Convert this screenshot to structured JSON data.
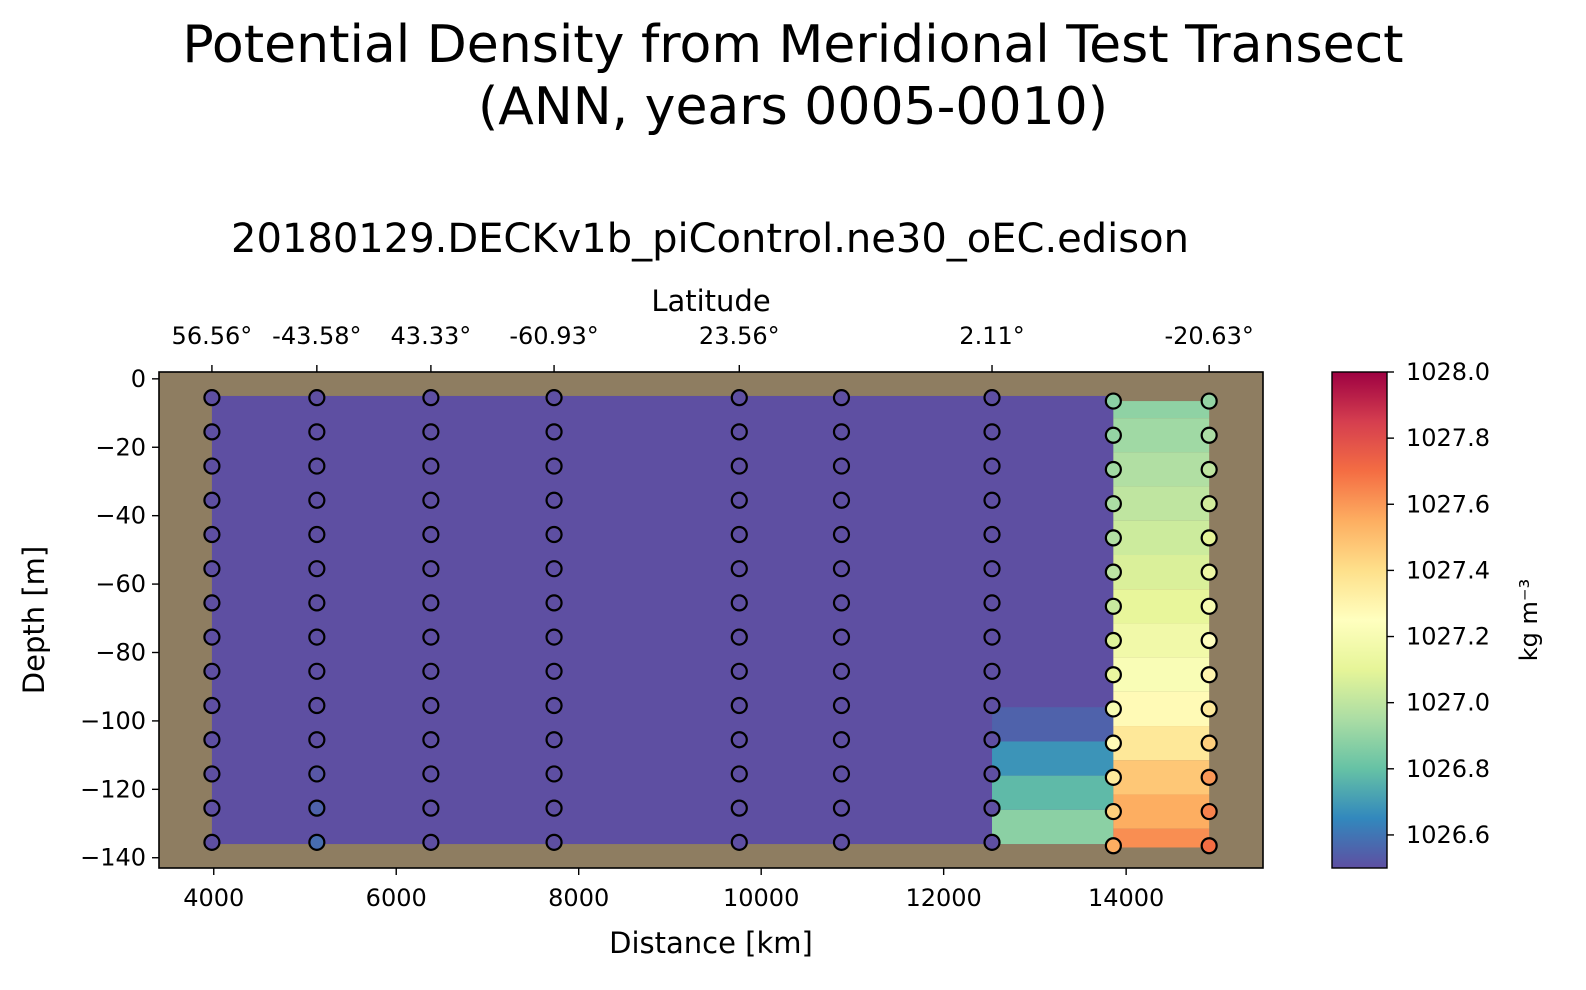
{
  "title_line1": "Potential Density from Meridional Test Transect",
  "title_line2": "(ANN, years 0005-0010)",
  "subtitle": "20180129.DECKv1b_piControl.ne30_oEC.edison",
  "colors": {
    "background_land": "#8e7d61",
    "marker_edge": "#000000"
  },
  "chart_data": {
    "type": "heatmap",
    "title": "Potential Density from Meridional Test Transect (ANN, years 0005-0010)",
    "subtitle": "20180129.DECKv1b_piControl.ne30_oEC.edison",
    "xlabel": "Distance [km]",
    "ylabel": "Depth [m]",
    "top_xlabel": "Latitude",
    "xlim": [
      3400,
      15500
    ],
    "ylim": [
      -143,
      2
    ],
    "x_ticks": [
      4000,
      6000,
      8000,
      10000,
      12000,
      14000
    ],
    "y_ticks": [
      0,
      -20,
      -40,
      -60,
      -80,
      -100,
      -120,
      -140
    ],
    "y_tick_labels": [
      "0",
      "−20",
      "−40",
      "−60",
      "−80",
      "−100",
      "−120",
      "−140"
    ],
    "top_ticks": [
      {
        "x": 3980,
        "label": "56.56°"
      },
      {
        "x": 5130,
        "label": "-43.58°"
      },
      {
        "x": 6380,
        "label": "43.33°"
      },
      {
        "x": 7730,
        "label": "-60.93°"
      },
      {
        "x": 9760,
        "label": "23.56°"
      },
      {
        "x": 12530,
        "label": "2.11°"
      },
      {
        "x": 14910,
        "label": "-20.63°"
      }
    ],
    "colorbar": {
      "label": "kg m⁻³",
      "min": 1026.5,
      "max": 1028.0,
      "ticks": [
        1026.6,
        1026.8,
        1027.0,
        1027.2,
        1027.4,
        1027.6,
        1027.8,
        1028.0
      ],
      "tick_labels": [
        "1026.6",
        "1026.8",
        "1027.0",
        "1027.2",
        "1027.4",
        "1027.6",
        "1027.8",
        "1028.0"
      ]
    },
    "columns": [
      {
        "x": 3980,
        "depths": [
          -5.5,
          -15.5,
          -25.5,
          -35.5,
          -45.5,
          -55.5,
          -65.5,
          -75.5,
          -85.5,
          -95.5,
          -105.5,
          -115.5,
          -125.5,
          -135.5
        ],
        "values": [
          1026.5,
          1026.5,
          1026.5,
          1026.5,
          1026.5,
          1026.5,
          1026.5,
          1026.5,
          1026.5,
          1026.5,
          1026.5,
          1026.5,
          1026.5,
          1026.5
        ]
      },
      {
        "x": 5130,
        "depths": [
          -5.5,
          -15.5,
          -25.5,
          -35.5,
          -45.5,
          -55.5,
          -65.5,
          -75.5,
          -85.5,
          -95.5,
          -105.5,
          -115.5,
          -125.5,
          -135.5
        ],
        "values": [
          1026.5,
          1026.5,
          1026.5,
          1026.5,
          1026.5,
          1026.5,
          1026.5,
          1026.5,
          1026.5,
          1026.5,
          1026.5,
          1026.52,
          1026.55,
          1026.58
        ]
      },
      {
        "x": 6380,
        "depths": [
          -5.5,
          -15.5,
          -25.5,
          -35.5,
          -45.5,
          -55.5,
          -65.5,
          -75.5,
          -85.5,
          -95.5,
          -105.5,
          -115.5,
          -125.5,
          -135.5
        ],
        "values": [
          1026.5,
          1026.5,
          1026.5,
          1026.5,
          1026.5,
          1026.5,
          1026.5,
          1026.5,
          1026.5,
          1026.5,
          1026.5,
          1026.5,
          1026.5,
          1026.5
        ]
      },
      {
        "x": 7730,
        "depths": [
          -5.5,
          -15.5,
          -25.5,
          -35.5,
          -45.5,
          -55.5,
          -65.5,
          -75.5,
          -85.5,
          -95.5,
          -105.5,
          -115.5,
          -125.5,
          -135.5
        ],
        "values": [
          1026.5,
          1026.5,
          1026.5,
          1026.5,
          1026.5,
          1026.5,
          1026.5,
          1026.5,
          1026.5,
          1026.5,
          1026.5,
          1026.5,
          1026.5,
          1026.5
        ]
      },
      {
        "x": 9760,
        "depths": [
          -5.5,
          -15.5,
          -25.5,
          -35.5,
          -45.5,
          -55.5,
          -65.5,
          -75.5,
          -85.5,
          -95.5,
          -105.5,
          -115.5,
          -125.5,
          -135.5
        ],
        "values": [
          1026.5,
          1026.5,
          1026.5,
          1026.5,
          1026.5,
          1026.5,
          1026.5,
          1026.5,
          1026.5,
          1026.5,
          1026.5,
          1026.5,
          1026.5,
          1026.5
        ]
      },
      {
        "x": 10880,
        "depths": [
          -5.5,
          -15.5,
          -25.5,
          -35.5,
          -45.5,
          -55.5,
          -65.5,
          -75.5,
          -85.5,
          -95.5,
          -105.5,
          -115.5,
          -125.5,
          -135.5
        ],
        "values": [
          1026.5,
          1026.5,
          1026.5,
          1026.5,
          1026.5,
          1026.5,
          1026.5,
          1026.5,
          1026.5,
          1026.5,
          1026.5,
          1026.5,
          1026.5,
          1026.5
        ]
      },
      {
        "x": 12530,
        "depths": [
          -5.5,
          -15.5,
          -25.5,
          -35.5,
          -45.5,
          -55.5,
          -65.5,
          -75.5,
          -85.5,
          -95.5,
          -105.5,
          -115.5,
          -125.5,
          -135.5
        ],
        "values": [
          1026.5,
          1026.5,
          1026.5,
          1026.5,
          1026.5,
          1026.5,
          1026.5,
          1026.5,
          1026.5,
          1026.5,
          1026.5,
          1026.5,
          1026.5,
          1026.5
        ]
      },
      {
        "x": 13860,
        "depths": [
          -6.5,
          -16.5,
          -26.5,
          -36.5,
          -46.5,
          -56.5,
          -66.5,
          -76.5,
          -86.5,
          -96.5,
          -106.5,
          -116.5,
          -126.5,
          -136.5
        ],
        "values": [
          1026.88,
          1026.9,
          1026.93,
          1026.95,
          1026.97,
          1026.99,
          1027.02,
          1027.08,
          1027.13,
          1027.2,
          1027.27,
          1027.35,
          1027.45,
          1027.55
        ]
      },
      {
        "x": 14910,
        "depths": [
          -6.5,
          -16.5,
          -26.5,
          -36.5,
          -46.5,
          -56.5,
          -66.5,
          -76.5,
          -86.5,
          -96.5,
          -106.5,
          -116.5,
          -126.5,
          -136.5
        ],
        "values": [
          1026.9,
          1026.95,
          1027.0,
          1027.05,
          1027.1,
          1027.15,
          1027.2,
          1027.25,
          1027.3,
          1027.35,
          1027.45,
          1027.6,
          1027.65,
          1027.7
        ]
      }
    ],
    "fill_bands": [
      {
        "x0": 3980,
        "x1": 13860,
        "y0": -5,
        "y1": -136,
        "value": 1026.5
      },
      {
        "x0": 12530,
        "x1": 13860,
        "y0": -96,
        "y1": -106,
        "value": 1026.55
      },
      {
        "x0": 12530,
        "x1": 13860,
        "y0": -106,
        "y1": -116,
        "value": 1026.68
      },
      {
        "x0": 12530,
        "x1": 13860,
        "y0": -116,
        "y1": -126,
        "value": 1026.78
      },
      {
        "x0": 12530,
        "x1": 13860,
        "y0": -126,
        "y1": -136,
        "value": 1026.88
      },
      {
        "x0": 13860,
        "x1": 14910,
        "y0": -6.5,
        "y1": -137,
        "value": "column"
      }
    ]
  }
}
